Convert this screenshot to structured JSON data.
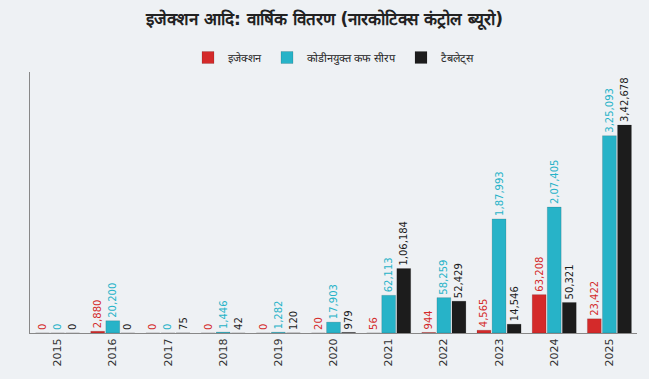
{
  "chart_data": {
    "type": "bar",
    "title": "इजेक्शन आदि: वार्षिक वितरण (नारकोटिक्स कंट्रोल ब्यूरो)",
    "categories": [
      "2015",
      "2016",
      "2017",
      "2018",
      "2019",
      "2020",
      "2021",
      "2022",
      "2023",
      "2024",
      "2025"
    ],
    "series": [
      {
        "name": "इजेक्शन",
        "color": "#d42a2a",
        "values": [
          0,
          2880,
          0,
          0,
          0,
          20,
          56,
          944,
          4565,
          63208,
          23422
        ],
        "value_labels": [
          "0",
          "2,880",
          "0",
          "0",
          "0",
          "20",
          "56",
          "944",
          "4,565",
          "63,208",
          "23,422"
        ]
      },
      {
        "name": "कोडीनयुक्त कफ सीरप",
        "color": "#27b3c8",
        "values": [
          0,
          20200,
          0,
          1446,
          1282,
          17903,
          62113,
          58259,
          187993,
          207405,
          325093
        ],
        "value_labels": [
          "0",
          "20,200",
          "0",
          "1,446",
          "1,282",
          "17,903",
          "62,113",
          "58,259",
          "1,87,993",
          "2,07,405",
          "3,25,093"
        ]
      },
      {
        "name": "टैबलेट्स",
        "color": "#1c1c1c",
        "values": [
          0,
          0,
          75,
          42,
          120,
          979,
          106184,
          52429,
          14546,
          50321,
          342678
        ],
        "value_labels": [
          "0",
          "0",
          "75",
          "42",
          "120",
          "979",
          "1,06,184",
          "52,429",
          "14,546",
          "50,321",
          "3,42,678"
        ]
      }
    ],
    "ylim": [
      0,
      430000
    ],
    "data_labels": true,
    "tick_labels": "x",
    "legend": "top"
  }
}
